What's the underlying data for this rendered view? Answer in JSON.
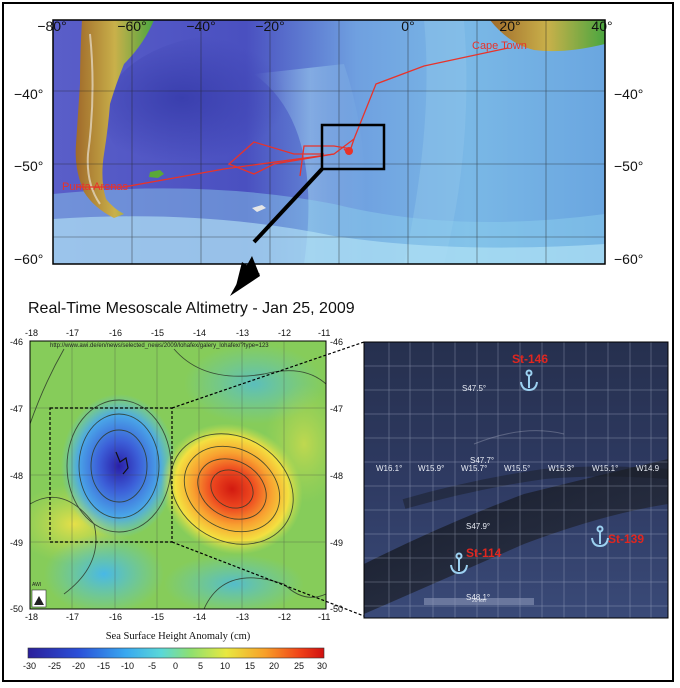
{
  "world_map": {
    "lon_ticks": [
      "−80°",
      "−60°",
      "−40°",
      "−20°",
      "0°",
      "20°",
      "40°"
    ],
    "lat_ticks_left": [
      "−40°",
      "−50°",
      "−60°"
    ],
    "lat_ticks_right": [
      "−40°",
      "−50°",
      "−60°"
    ],
    "places": {
      "cape_town": "Cape Town",
      "punta_arenas": "Punta Arenas"
    },
    "route_color": "#e8332a"
  },
  "altimetry": {
    "title": "Real-Time Mesoscale Altimetry - Jan 25, 2009",
    "url": "http://www.awi.de/en/news/selected_news/2009/lohafex/galery_lohafex/?type=123",
    "lon_ticks": [
      "-18",
      "-17",
      "-16",
      "-15",
      "-14",
      "-13",
      "-12",
      "-11"
    ],
    "lat_ticks": [
      "-46",
      "-47",
      "-48",
      "-49",
      "-50"
    ],
    "xlabel": "Sea Surface Height Anomaly (cm)",
    "colorbar_ticks": [
      "-30",
      "-25",
      "-20",
      "-15",
      "-10",
      "-5",
      "0",
      "5",
      "10",
      "15",
      "20",
      "25",
      "30"
    ],
    "logo_text": "AWI"
  },
  "zoom_map": {
    "lon_labels": [
      "W16.1°",
      "W15.9°",
      "W15.7°",
      "W15.5°",
      "W15.3°",
      "W15.1°",
      "W14.9"
    ],
    "lat_labels": [
      "S47.5°",
      "S47.7°",
      "S47.9°",
      "S48.1°"
    ],
    "scale_label": "20 km",
    "stations": [
      {
        "name": "St-146"
      },
      {
        "name": "St-114"
      },
      {
        "name": "St-139"
      }
    ],
    "station_color": "#e0261f"
  }
}
